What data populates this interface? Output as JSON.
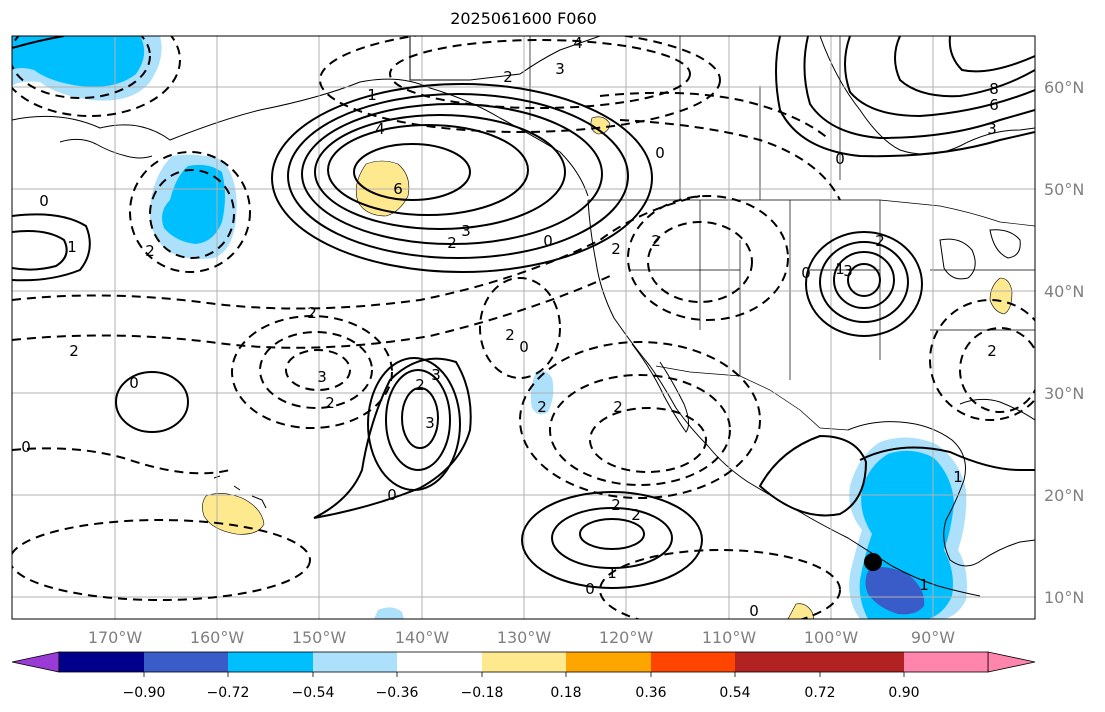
{
  "title": "2025061600 F060",
  "colors": {
    "positive_fill": "#FFE98F",
    "negative_fill_light": "#ADE0FA",
    "negative_fill_mid": "#00BFFF",
    "negative_fill_dark": "#3A5CC9",
    "contour": "#000000",
    "grid": "#b0b0b0",
    "tick_text": "#808080",
    "marker": "#000000"
  },
  "axes": {
    "lon_labels": [
      "170°W",
      "160°W",
      "150°W",
      "140°W",
      "130°W",
      "120°W",
      "110°W",
      "100°W",
      "90°W"
    ],
    "lat_labels": [
      "60°N",
      "50°N",
      "40°N",
      "30°N",
      "20°N",
      "10°N"
    ]
  },
  "colorbar": {
    "colors": [
      "#9B3BD6",
      "#00008B",
      "#3A5CC9",
      "#00BFFF",
      "#ADE0FA",
      "#FFFFFF",
      "#FFE98F",
      "#FFA500",
      "#FF4500",
      "#B22222",
      "#FF85AD"
    ],
    "tick_labels": [
      "−0.90",
      "−0.72",
      "−0.54",
      "−0.36",
      "−0.18",
      "0.18",
      "0.36",
      "0.54",
      "0.72",
      "0.90"
    ]
  },
  "contour_labels": [
    "4",
    "3",
    "2",
    "1",
    "6",
    "4",
    "3",
    "2",
    "0",
    "2",
    "2",
    "0",
    "3",
    "2",
    "1",
    "2",
    "2",
    "3",
    "2",
    "0",
    "3",
    "0",
    "2",
    "3",
    "2",
    "0",
    "2",
    "0",
    "2",
    "2",
    "2",
    "2",
    "1",
    "1",
    "0",
    "0",
    "0",
    "0",
    "8",
    "6",
    "3",
    "0",
    "1",
    "2",
    "1"
  ],
  "marker": {
    "lon": -95.7,
    "lat": 13.4
  }
}
